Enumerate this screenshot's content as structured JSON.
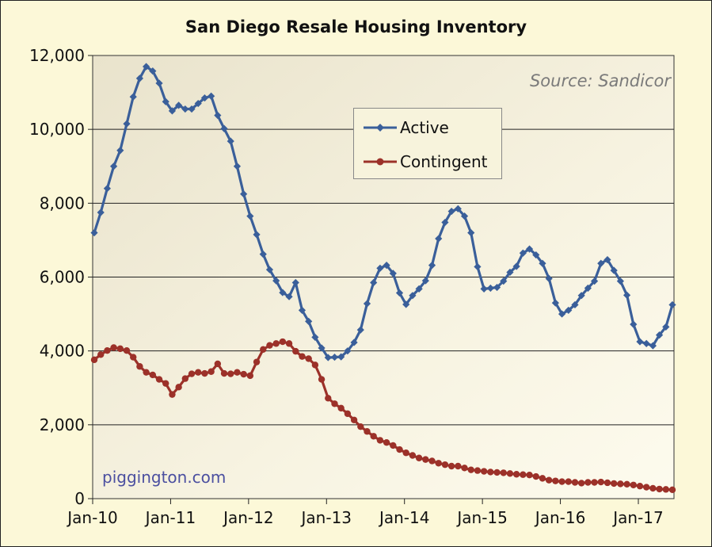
{
  "chart_data": {
    "type": "line",
    "title": "San Diego Resale Housing Inventory",
    "annotations": [
      "Source: Sandicor",
      "piggington.com"
    ],
    "x_tick_labels": [
      "Jan-10",
      "Jan-11",
      "Jan-12",
      "Jan-13",
      "Jan-14",
      "Jan-15",
      "Jan-16",
      "Jan-17"
    ],
    "y_tick_labels": [
      "0",
      "2,000",
      "4,000",
      "6,000",
      "8,000",
      "10,000",
      "12,000"
    ],
    "ylim": [
      0,
      12000
    ],
    "grid": true,
    "legend_position": "top-center",
    "x_start": "Jan-10",
    "series": [
      {
        "name": "Active",
        "color": "#3a5f9a",
        "marker": "diamond",
        "values": [
          7200,
          7750,
          8400,
          9000,
          9430,
          10150,
          10880,
          11380,
          11700,
          11580,
          11250,
          10750,
          10500,
          10650,
          10550,
          10550,
          10700,
          10850,
          10900,
          10380,
          10020,
          9680,
          9000,
          8250,
          7650,
          7150,
          6620,
          6200,
          5900,
          5580,
          5470,
          5850,
          5100,
          4800,
          4370,
          4080,
          3820,
          3830,
          3840,
          4000,
          4230,
          4570,
          5280,
          5850,
          6240,
          6320,
          6100,
          5570,
          5260,
          5500,
          5680,
          5900,
          6320,
          7040,
          7480,
          7780,
          7850,
          7650,
          7200,
          6280,
          5680,
          5700,
          5720,
          5890,
          6130,
          6290,
          6650,
          6760,
          6600,
          6370,
          5960,
          5300,
          5000,
          5100,
          5250,
          5500,
          5700,
          5890,
          6370,
          6470,
          6180,
          5890,
          5510,
          4720,
          4250,
          4200,
          4140,
          4430,
          4650,
          5250
        ]
      },
      {
        "name": "Contingent",
        "color": "#9c3129",
        "marker": "circle",
        "values": [
          3760,
          3900,
          4010,
          4090,
          4060,
          4010,
          3830,
          3580,
          3420,
          3350,
          3230,
          3120,
          2820,
          3020,
          3250,
          3380,
          3420,
          3390,
          3440,
          3650,
          3390,
          3380,
          3420,
          3370,
          3330,
          3700,
          4040,
          4150,
          4200,
          4250,
          4200,
          3990,
          3850,
          3790,
          3620,
          3230,
          2720,
          2570,
          2450,
          2300,
          2130,
          1950,
          1820,
          1690,
          1580,
          1520,
          1440,
          1330,
          1240,
          1170,
          1100,
          1060,
          1020,
          960,
          920,
          880,
          880,
          830,
          780,
          760,
          740,
          720,
          710,
          700,
          680,
          660,
          650,
          640,
          600,
          550,
          500,
          480,
          460,
          460,
          440,
          420,
          440,
          440,
          450,
          430,
          410,
          400,
          390,
          370,
          340,
          310,
          280,
          260,
          250,
          240
        ]
      }
    ]
  }
}
